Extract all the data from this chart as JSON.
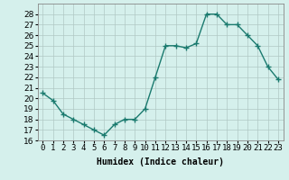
{
  "x": [
    0,
    1,
    2,
    3,
    4,
    5,
    6,
    7,
    8,
    9,
    10,
    11,
    12,
    13,
    14,
    15,
    16,
    17,
    18,
    19,
    20,
    21,
    22,
    23
  ],
  "y": [
    20.5,
    19.8,
    18.5,
    18.0,
    17.5,
    17.0,
    16.5,
    17.5,
    18.0,
    18.0,
    19.0,
    22.0,
    25.0,
    25.0,
    24.8,
    25.2,
    28.0,
    28.0,
    27.0,
    27.0,
    26.0,
    25.0,
    23.0,
    21.8
  ],
  "line_color": "#1a7a6e",
  "marker": "+",
  "marker_size": 4,
  "bg_color": "#d5f0ec",
  "grid_color": "#b0c8c4",
  "xlim": [
    -0.5,
    23.5
  ],
  "ylim": [
    16,
    29
  ],
  "yticks": [
    16,
    17,
    18,
    19,
    20,
    21,
    22,
    23,
    24,
    25,
    26,
    27,
    28
  ],
  "xtick_labels": [
    "0",
    "1",
    "2",
    "3",
    "4",
    "5",
    "6",
    "7",
    "8",
    "9",
    "10",
    "11",
    "12",
    "13",
    "14",
    "15",
    "16",
    "17",
    "18",
    "19",
    "20",
    "21",
    "22",
    "23"
  ],
  "xlabel": "Humidex (Indice chaleur)",
  "xlabel_fontsize": 7,
  "tick_fontsize": 6.5
}
